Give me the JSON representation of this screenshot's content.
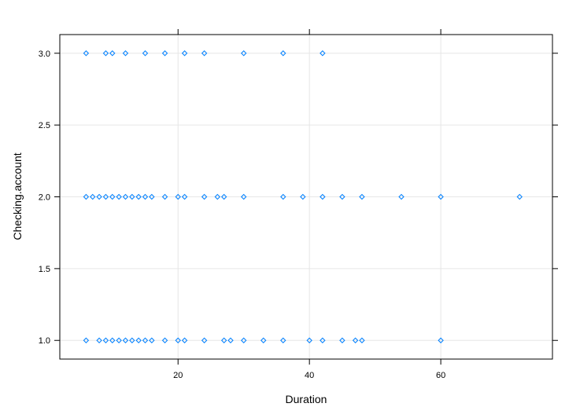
{
  "chart_data": {
    "type": "scatter",
    "title": "",
    "xlabel": "Duration",
    "ylabel": "Checking.account",
    "xlim": [
      2,
      77
    ],
    "ylim": [
      0.87,
      3.13
    ],
    "x_ticks": [
      20,
      40,
      60
    ],
    "x_tick_labels": [
      "20",
      "40",
      "60"
    ],
    "y_ticks": [
      1.0,
      1.5,
      2.0,
      2.5,
      3.0
    ],
    "y_tick_labels": [
      "1.0",
      "1.5",
      "2.0",
      "2.5",
      "3.0"
    ],
    "grid": true,
    "marker": "diamond",
    "series": [
      {
        "color": "#0080ff",
        "points": [
          [
            6,
            3
          ],
          [
            9,
            3
          ],
          [
            10,
            3
          ],
          [
            12,
            3
          ],
          [
            15,
            3
          ],
          [
            18,
            3
          ],
          [
            21,
            3
          ],
          [
            24,
            3
          ],
          [
            30,
            3
          ],
          [
            36,
            3
          ],
          [
            42,
            3
          ],
          [
            6,
            2
          ],
          [
            7,
            2
          ],
          [
            8,
            2
          ],
          [
            9,
            2
          ],
          [
            10,
            2
          ],
          [
            11,
            2
          ],
          [
            12,
            2
          ],
          [
            13,
            2
          ],
          [
            14,
            2
          ],
          [
            15,
            2
          ],
          [
            16,
            2
          ],
          [
            18,
            2
          ],
          [
            20,
            2
          ],
          [
            21,
            2
          ],
          [
            24,
            2
          ],
          [
            26,
            2
          ],
          [
            27,
            2
          ],
          [
            30,
            2
          ],
          [
            36,
            2
          ],
          [
            39,
            2
          ],
          [
            42,
            2
          ],
          [
            45,
            2
          ],
          [
            48,
            2
          ],
          [
            54,
            2
          ],
          [
            60,
            2
          ],
          [
            72,
            2
          ],
          [
            6,
            1
          ],
          [
            8,
            1
          ],
          [
            9,
            1
          ],
          [
            10,
            1
          ],
          [
            11,
            1
          ],
          [
            12,
            1
          ],
          [
            13,
            1
          ],
          [
            14,
            1
          ],
          [
            15,
            1
          ],
          [
            16,
            1
          ],
          [
            18,
            1
          ],
          [
            20,
            1
          ],
          [
            21,
            1
          ],
          [
            24,
            1
          ],
          [
            27,
            1
          ],
          [
            28,
            1
          ],
          [
            30,
            1
          ],
          [
            33,
            1
          ],
          [
            36,
            1
          ],
          [
            40,
            1
          ],
          [
            42,
            1
          ],
          [
            45,
            1
          ],
          [
            47,
            1
          ],
          [
            48,
            1
          ],
          [
            60,
            1
          ]
        ]
      }
    ]
  }
}
